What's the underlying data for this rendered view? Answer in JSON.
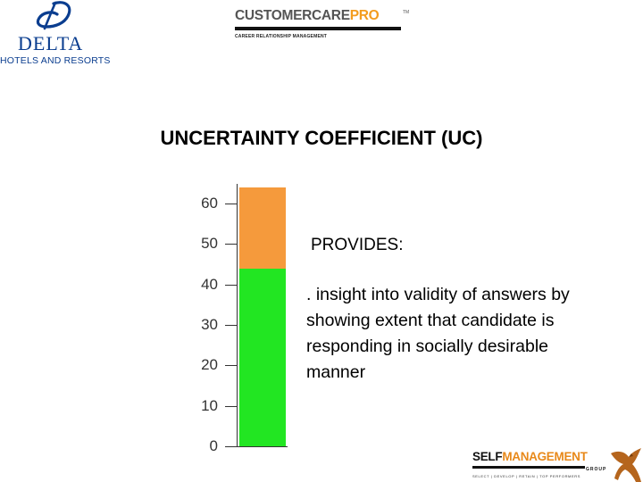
{
  "logos": {
    "delta": {
      "name": "DELTA",
      "subtitle": "HOTELS AND RESORTS",
      "icon": "delta-d-mark",
      "color": "#0a3d8f"
    },
    "customer_care_pro": {
      "part1": "CUSTOMERCARE",
      "part2": "PRO",
      "trademark": "TM",
      "subtitle": "CAREER RELATIONSHIP MANAGEMENT"
    },
    "self_management": {
      "part1": "SELF",
      "part2": "MANAGEMENT",
      "group": "GROUP",
      "tagline": "SELECT | DEVELOP | RETAIN | TOP PERFORMERS",
      "icon": "eagle-icon"
    }
  },
  "title": "UNCERTAINTY COEFFICIENT (UC)",
  "gauge": {
    "ticks": [
      "60",
      "50",
      "40",
      "30",
      "20",
      "10",
      "0"
    ],
    "max": 60,
    "zones": [
      {
        "from": 0,
        "to": 44,
        "color": "#22e622"
      },
      {
        "from": 44,
        "to": 64,
        "color": "#f59a3c"
      }
    ]
  },
  "body": {
    "provides": "PROVIDES:",
    "description": ". insight into validity of answers by showing extent that candidate is responding in socially desirable manner"
  }
}
